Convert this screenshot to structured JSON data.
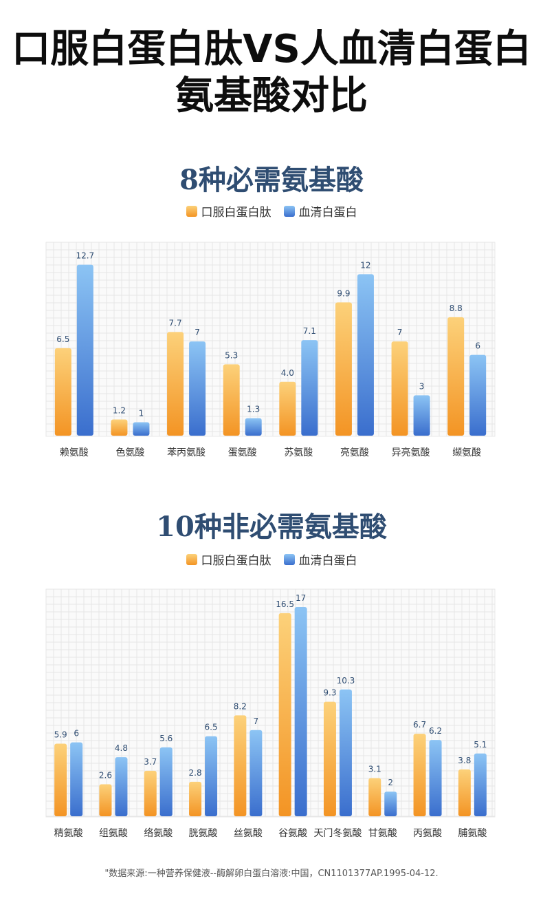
{
  "title_line1": "口服白蛋白肽VS人血清白蛋白",
  "title_line2": "氨基酸对比",
  "legend": {
    "series_a": "口服白蛋白肽",
    "series_b": "血清白蛋白"
  },
  "footnote": "\"数据来源:一种营养保健液--酶解卵白蛋白溶液:中国，CN1101377AP.1995-04-12.",
  "colors": {
    "title": "#0d0d0d",
    "section_title": "#2f4d72",
    "orange_top": "#fcd17a",
    "orange_bottom": "#f39424",
    "blue_top": "#8cc4f4",
    "blue_bottom": "#3a6ecd",
    "value_label": "#2f4d72",
    "grid": "#e6e6e6"
  },
  "chart_data": [
    {
      "type": "bar",
      "title": "8种必需氨基酸",
      "categories": [
        "赖氨酸",
        "色氨酸",
        "苯丙氨酸",
        "蛋氨酸",
        "苏氨酸",
        "亮氨酸",
        "异亮氨酸",
        "缬氨酸"
      ],
      "series": [
        {
          "name": "口服白蛋白肽",
          "values": [
            6.5,
            1.2,
            7.7,
            5.3,
            4.0,
            9.9,
            7,
            8.8
          ],
          "labels": [
            "6.5",
            "1.2",
            "7.7",
            "5.3",
            "4.0",
            "9.9",
            "7",
            "8.8"
          ]
        },
        {
          "name": "血清白蛋白",
          "values": [
            12.7,
            1,
            7,
            1.3,
            7.1,
            12,
            3,
            6
          ],
          "labels": [
            "12.7",
            "1",
            "7",
            "1.3",
            "7.1",
            "12",
            "3",
            "6"
          ]
        }
      ],
      "ylim": [
        0,
        13.5
      ],
      "grid": true,
      "legend_position": "top-center"
    },
    {
      "type": "bar",
      "title": "10种非必需氨基酸",
      "categories": [
        "精氨酸",
        "组氨酸",
        "络氨酸",
        "胱氨酸",
        "丝氨酸",
        "谷氨酸",
        "天门冬氨酸",
        "甘氨酸",
        "丙氨酸",
        "脯氨酸"
      ],
      "series": [
        {
          "name": "口服白蛋白肽",
          "values": [
            5.9,
            2.6,
            3.7,
            2.8,
            8.2,
            16.5,
            9.3,
            3.1,
            6.7,
            3.8
          ],
          "labels": [
            "5.9",
            "2.6",
            "3.7",
            "2.8",
            "8.2",
            "16.5",
            "9.3",
            "3.1",
            "6.7",
            "3.8"
          ]
        },
        {
          "name": "血清白蛋白",
          "values": [
            6,
            4.8,
            5.6,
            6.5,
            7,
            17,
            10.3,
            2,
            6.2,
            5.1
          ],
          "labels": [
            "6",
            "4.8",
            "5.6",
            "6.5",
            "7",
            "17",
            "10.3",
            "2",
            "6.2",
            "5.1"
          ]
        }
      ],
      "ylim": [
        0,
        17.5
      ],
      "grid": true,
      "legend_position": "top-center"
    }
  ]
}
